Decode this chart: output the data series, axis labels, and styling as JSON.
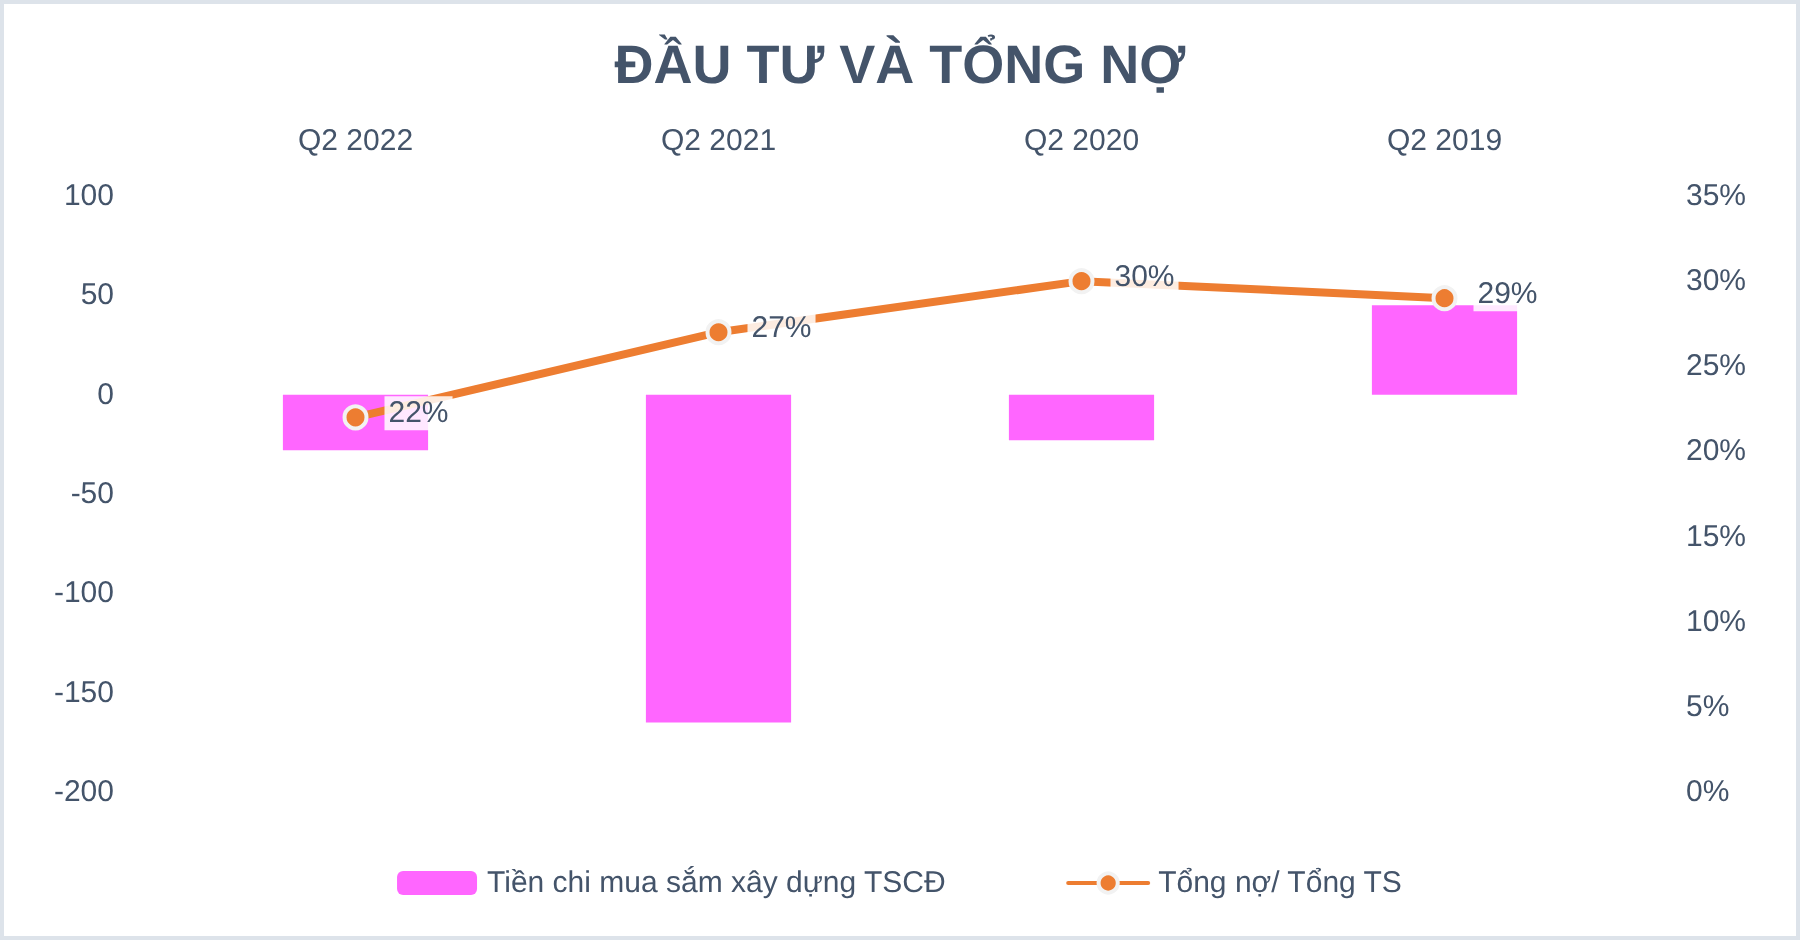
{
  "chart_data": {
    "type": "bar",
    "title": "ĐẦU TƯ VÀ TỔNG NỢ",
    "categories": [
      "Q2 2022",
      "Q2 2021",
      "Q2 2020",
      "Q2 2019"
    ],
    "series": [
      {
        "name": "Tiền chi mua sắm xây dựng TSCĐ",
        "color": "#ff66ff",
        "values": [
          -28,
          -165,
          -23,
          45
        ]
      },
      {
        "name": "Tổng nợ/ Tổng TS",
        "type": "line",
        "axis": "y2",
        "color": "#ed7d31",
        "values": [
          22,
          27,
          30,
          29
        ],
        "value_labels": [
          "22%",
          "27%",
          "30%",
          "29%"
        ]
      }
    ],
    "ylim": [
      -200,
      100
    ],
    "yticks": [
      -200,
      -150,
      -100,
      -50,
      0,
      50,
      100
    ],
    "y2lim": [
      0,
      35
    ],
    "y2ticks": [
      {
        "value": 0,
        "label": "0%"
      },
      {
        "value": 5,
        "label": "5%"
      },
      {
        "value": 10,
        "label": "10%"
      },
      {
        "value": 15,
        "label": "15%"
      },
      {
        "value": 20,
        "label": "20%"
      },
      {
        "value": 25,
        "label": "25%"
      },
      {
        "value": 30,
        "label": "30%"
      },
      {
        "value": 35,
        "label": "35%"
      }
    ],
    "grid": false,
    "legend": "bottom",
    "marker": "circle",
    "line_style": "solid"
  }
}
